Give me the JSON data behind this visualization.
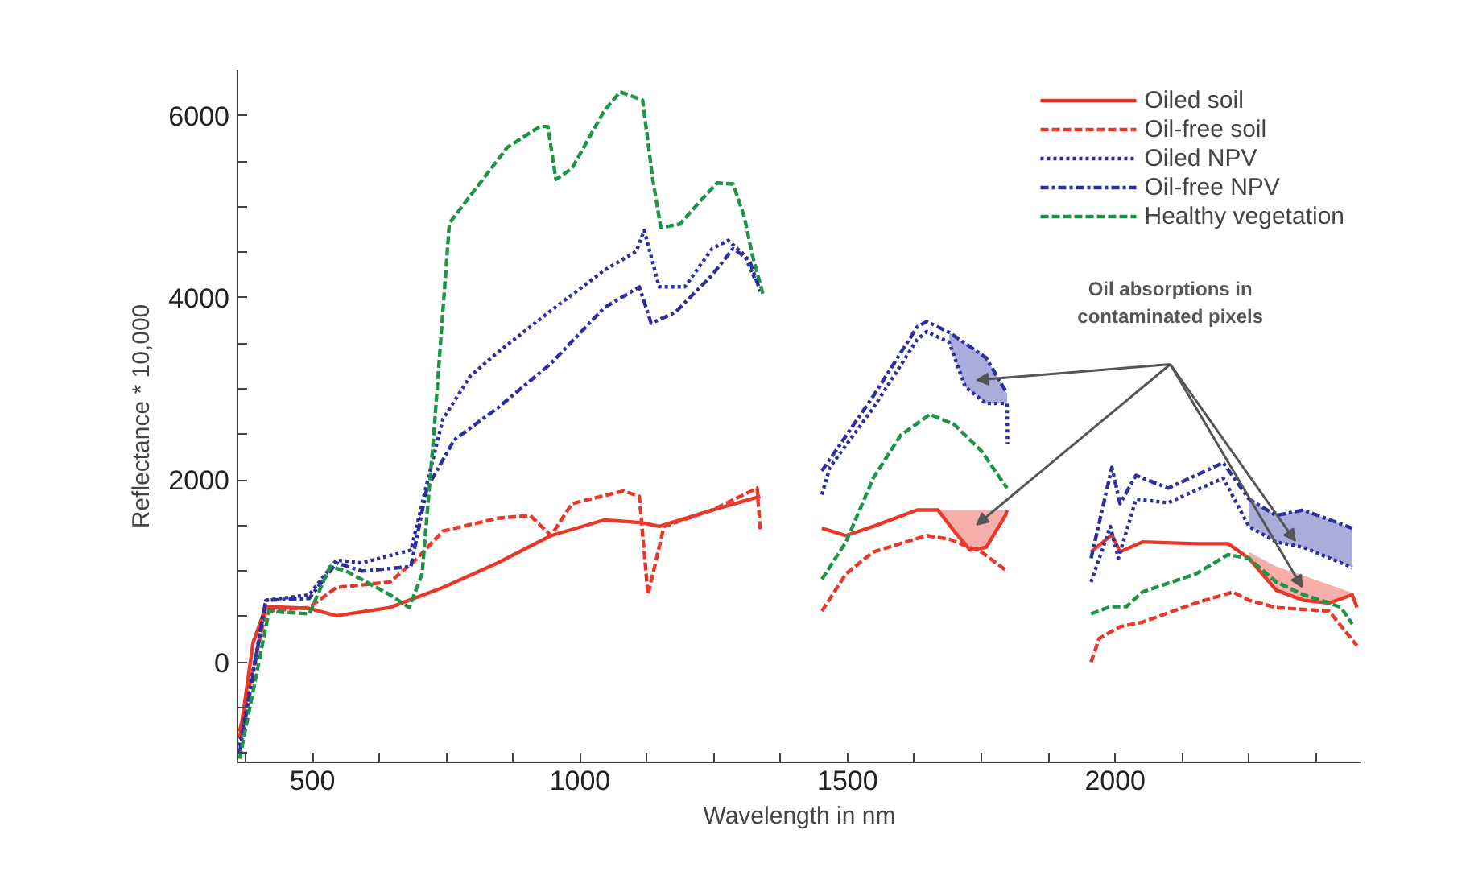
{
  "chart_data": {
    "type": "line",
    "xlabel": "Wavelength in nm",
    "ylabel": "Reflectance * 10,000",
    "xlim": [
      360,
      2460
    ],
    "ylim": [
      -1100,
      6500
    ],
    "xticks": [
      {
        "value": 375,
        "label": null
      },
      500,
      {
        "value": 625,
        "label": null
      },
      {
        "value": 750,
        "label": null
      },
      {
        "value": 875,
        "label": null
      },
      1000,
      {
        "value": 1125,
        "label": null
      },
      {
        "value": 1250,
        "label": null
      },
      {
        "value": 1375,
        "label": null
      },
      1500,
      {
        "value": 1625,
        "label": null
      },
      {
        "value": 1750,
        "label": null
      },
      {
        "value": 1875,
        "label": null
      },
      2000,
      {
        "value": 2125,
        "label": null
      },
      {
        "value": 2250,
        "label": null
      },
      {
        "value": 2375,
        "label": null
      }
    ],
    "yticks": [
      {
        "value": -1000,
        "label": null
      },
      {
        "value": -500,
        "label": null
      },
      0,
      {
        "value": 500,
        "label": null
      },
      {
        "value": 1000,
        "label": null
      },
      {
        "value": 1500,
        "label": null
      },
      2000,
      {
        "value": 2500,
        "label": null
      },
      {
        "value": 3000,
        "label": null
      },
      {
        "value": 3500,
        "label": null
      },
      4000,
      {
        "value": 4500,
        "label": null
      },
      {
        "value": 5000,
        "label": null
      },
      {
        "value": 5500,
        "label": null
      },
      6000
    ],
    "grid": false,
    "legend": "top right",
    "series": [
      {
        "name": "Oiled soil",
        "color": "#e8382a",
        "line_style": "solid",
        "x": [
          364,
          389,
          413,
          494,
          545,
          645,
          744,
          846,
          946,
          1045,
          1117,
          1148,
          1247,
          1337,
          1400,
          1452,
          1497,
          1548,
          1630,
          1669,
          1699,
          1729,
          1759,
          1795,
          1798,
          1900,
          1955,
          1994,
          2009,
          2051,
          2151,
          2211,
          2250,
          2301,
          2352,
          2400,
          2443,
          2452
        ],
        "values": [
          -840,
          210,
          610,
          590,
          510,
          600,
          820,
          1090,
          1390,
          1560,
          1530,
          1490,
          1670,
          1820,
          null,
          1470,
          1390,
          1490,
          1670,
          1670,
          1440,
          1230,
          1260,
          1610,
          1670,
          null,
          1210,
          1400,
          1210,
          1320,
          1300,
          1300,
          1140,
          790,
          680,
          650,
          740,
          600
        ],
        "lower": [
          null,
          null,
          null,
          null,
          null,
          null,
          null,
          null,
          null,
          null,
          null,
          null,
          null,
          null,
          null,
          null,
          null,
          null,
          null,
          1670,
          1440,
          1230,
          1260,
          1610,
          1670,
          null,
          null,
          null,
          null,
          null,
          null,
          null,
          1140,
          790,
          680,
          650,
          740,
          null
        ],
        "upper": [
          null,
          null,
          null,
          null,
          null,
          null,
          null,
          null,
          null,
          null,
          null,
          null,
          null,
          null,
          null,
          null,
          null,
          null,
          null,
          1670,
          1670,
          1670,
          1670,
          1670,
          1670,
          null,
          null,
          null,
          null,
          null,
          null,
          null,
          1210,
          1050,
          950,
          850,
          760,
          null
        ]
      },
      {
        "name": "Oil-free soil",
        "color": "#e8382a",
        "line_style": "dashed",
        "x": [
          364,
          413,
          494,
          545,
          645,
          696,
          744,
          846,
          907,
          946,
          985,
          1081,
          1111,
          1127,
          1157,
          1247,
          1331,
          1337,
          1400,
          1452,
          1497,
          1548,
          1648,
          1690,
          1750,
          1798,
          1900,
          1955,
          1970,
          2009,
          2051,
          2151,
          2220,
          2250,
          2301,
          2400,
          2452
        ],
        "values": [
          -760,
          560,
          600,
          820,
          880,
          1140,
          1440,
          1580,
          1610,
          1390,
          1740,
          1880,
          1820,
          740,
          1490,
          1670,
          1910,
          1440,
          null,
          560,
          970,
          1210,
          1390,
          1350,
          1210,
          1000,
          null,
          0,
          260,
          390,
          440,
          650,
          770,
          680,
          600,
          560,
          180
        ]
      },
      {
        "name": "Oiled NPV",
        "color": "#2b2fa0",
        "line_style": "dotted",
        "x": [
          364,
          413,
          494,
          545,
          593,
          684,
          714,
          744,
          795,
          846,
          946,
          1045,
          1105,
          1120,
          1148,
          1196,
          1247,
          1277,
          1307,
          1328,
          1400,
          1452,
          1467,
          1548,
          1630,
          1648,
          1690,
          1720,
          1759,
          1798,
          1799,
          1900,
          1955,
          1991,
          2006,
          2039,
          2099,
          2202,
          2250,
          2301,
          2352,
          2443
        ],
        "values": [
          -920,
          680,
          740,
          1120,
          1090,
          1230,
          1960,
          2670,
          3140,
          3400,
          3860,
          4300,
          4510,
          4740,
          4120,
          4120,
          4540,
          4630,
          4470,
          4190,
          null,
          1840,
          2140,
          2790,
          3540,
          3630,
          3510,
          3020,
          2840,
          2840,
          2400,
          null,
          880,
          1490,
          1140,
          1790,
          1750,
          2020,
          1490,
          1320,
          1260,
          1040
        ],
        "lower": [
          null,
          null,
          null,
          null,
          null,
          null,
          null,
          null,
          null,
          null,
          null,
          null,
          null,
          null,
          null,
          null,
          null,
          null,
          null,
          null,
          null,
          null,
          null,
          null,
          null,
          null,
          3510,
          3020,
          2840,
          2840,
          null,
          null,
          null,
          null,
          null,
          null,
          null,
          null,
          1490,
          1320,
          1260,
          1040
        ],
        "upper": [
          null,
          null,
          null,
          null,
          null,
          null,
          null,
          null,
          null,
          null,
          null,
          null,
          null,
          null,
          null,
          null,
          null,
          null,
          null,
          null,
          null,
          null,
          null,
          null,
          null,
          null,
          3620,
          3500,
          3340,
          2950,
          null,
          null,
          null,
          null,
          null,
          null,
          null,
          null,
          1790,
          1610,
          1670,
          1470
        ]
      },
      {
        "name": "Oil-free NPV",
        "color": "#2b2fa0",
        "line_style": "dashdot",
        "x": [
          364,
          413,
          494,
          545,
          593,
          684,
          714,
          765,
          846,
          946,
          1045,
          1111,
          1133,
          1178,
          1247,
          1286,
          1316,
          1337,
          1400,
          1452,
          1548,
          1630,
          1648,
          1690,
          1720,
          1759,
          1798,
          1900,
          1955,
          1994,
          2009,
          2039,
          2099,
          2202,
          2250,
          2301,
          2352,
          2443
        ],
        "values": [
          -990,
          680,
          700,
          1090,
          1000,
          1050,
          1910,
          2440,
          2790,
          3280,
          3890,
          4120,
          3720,
          3840,
          4250,
          4540,
          4420,
          4070,
          null,
          2100,
          2920,
          3680,
          3740,
          3620,
          3500,
          3340,
          2950,
          null,
          1140,
          2140,
          1740,
          2050,
          1910,
          2190,
          1790,
          1610,
          1670,
          1470
        ]
      },
      {
        "name": "Healthy vegetation",
        "color": "#1f9447",
        "line_style": "dashed",
        "x": [
          364,
          419,
          494,
          533,
          563,
          645,
          681,
          705,
          726,
          756,
          795,
          864,
          925,
          940,
          955,
          985,
          1045,
          1075,
          1117,
          1136,
          1151,
          1187,
          1226,
          1256,
          1286,
          1307,
          1322,
          1343,
          1400,
          1452,
          1497,
          1548,
          1599,
          1654,
          1699,
          1750,
          1798,
          1900,
          1955,
          1991,
          2021,
          2051,
          2151,
          2211,
          2250,
          2301,
          2352,
          2400,
          2422,
          2443
        ],
        "values": [
          -1060,
          560,
          530,
          1050,
          1000,
          740,
          600,
          970,
          2440,
          4820,
          5120,
          5650,
          5880,
          5880,
          5300,
          5420,
          6050,
          6260,
          6170,
          5300,
          4770,
          4810,
          5070,
          5260,
          5250,
          4890,
          4470,
          4020,
          null,
          910,
          1320,
          2020,
          2490,
          2720,
          2610,
          2320,
          1910,
          null,
          530,
          610,
          610,
          770,
          970,
          1180,
          1140,
          880,
          740,
          650,
          600,
          420
        ]
      }
    ],
    "annotations": [
      "Oil absorptions in contaminated pixels"
    ]
  }
}
